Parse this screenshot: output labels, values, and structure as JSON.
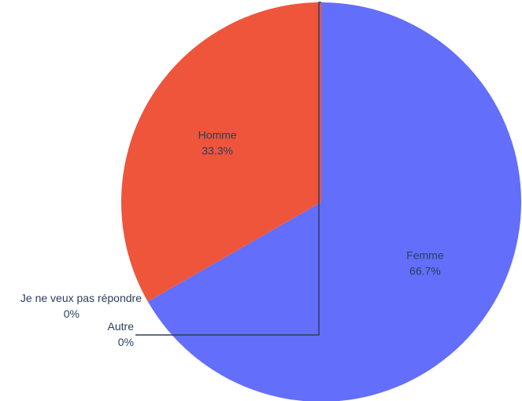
{
  "chart_data": {
    "type": "pie",
    "slices": [
      {
        "label": "Femme",
        "value": 66.7,
        "percent_label": "66.7%",
        "color": "#636efa"
      },
      {
        "label": "Homme",
        "value": 33.3,
        "percent_label": "33.3%",
        "color": "#ef553b"
      },
      {
        "label": "Je ne veux pas répondre",
        "value": 0,
        "percent_label": "0%",
        "color": "#00cc96"
      },
      {
        "label": "Autre",
        "value": 0,
        "percent_label": "0%",
        "color": "#ab63fa"
      }
    ],
    "direction": "clockwise",
    "start": "top",
    "text_info": "label+percent",
    "legend": "none"
  }
}
